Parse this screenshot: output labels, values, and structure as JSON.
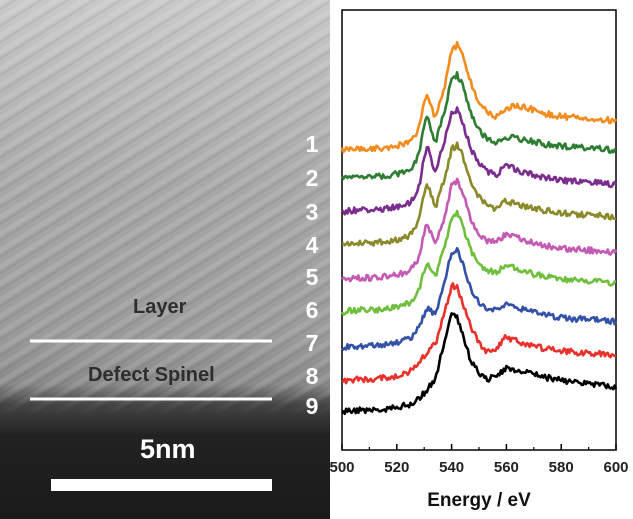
{
  "figure": {
    "micrograph": {
      "layer_label": "Layer",
      "defect_label": "Defect Spinel",
      "scale_bar_label": "5nm"
    },
    "spectrum_numbers": [
      "1",
      "2",
      "3",
      "4",
      "5",
      "6",
      "7",
      "8",
      "9"
    ]
  },
  "chart_data": {
    "type": "line",
    "title": "",
    "xlabel": "Energy / eV",
    "ylabel": "",
    "xlim": [
      500,
      600
    ],
    "x_ticks": [
      500,
      520,
      540,
      560,
      580,
      600
    ],
    "grid": false,
    "legend": "none",
    "x": [
      500,
      505,
      510,
      515,
      520,
      525,
      528,
      531,
      534,
      537,
      540,
      542,
      544,
      547,
      550,
      553,
      556,
      560,
      565,
      570,
      575,
      580,
      585,
      590,
      595,
      600
    ],
    "series": [
      {
        "color": "#f28c1e",
        "values": [
          0.0,
          0.01,
          0.01,
          0.02,
          0.04,
          0.08,
          0.2,
          0.55,
          0.3,
          0.55,
          0.95,
          1.0,
          0.92,
          0.65,
          0.45,
          0.35,
          0.32,
          0.4,
          0.42,
          0.38,
          0.34,
          0.32,
          0.31,
          0.3,
          0.29,
          0.28
        ]
      },
      {
        "color": "#2e7d32",
        "values": [
          0.0,
          0.01,
          0.01,
          0.02,
          0.04,
          0.08,
          0.22,
          0.62,
          0.34,
          0.6,
          0.97,
          1.0,
          0.9,
          0.64,
          0.46,
          0.38,
          0.34,
          0.4,
          0.38,
          0.35,
          0.32,
          0.31,
          0.3,
          0.29,
          0.28,
          0.27
        ]
      },
      {
        "color": "#7b2d8e",
        "values": [
          0.0,
          0.02,
          0.02,
          0.03,
          0.05,
          0.1,
          0.24,
          0.66,
          0.38,
          0.65,
          0.98,
          1.0,
          0.88,
          0.62,
          0.47,
          0.4,
          0.36,
          0.46,
          0.4,
          0.36,
          0.33,
          0.31,
          0.3,
          0.29,
          0.28,
          0.27
        ]
      },
      {
        "color": "#8a8a2a",
        "values": [
          0.0,
          0.02,
          0.02,
          0.03,
          0.05,
          0.1,
          0.24,
          0.63,
          0.37,
          0.62,
          0.96,
          1.0,
          0.9,
          0.64,
          0.48,
          0.4,
          0.36,
          0.44,
          0.4,
          0.36,
          0.34,
          0.32,
          0.31,
          0.3,
          0.29,
          0.28
        ]
      },
      {
        "color": "#c45ab3",
        "values": [
          0.0,
          0.02,
          0.02,
          0.03,
          0.05,
          0.1,
          0.22,
          0.58,
          0.36,
          0.6,
          0.95,
          1.0,
          0.9,
          0.62,
          0.46,
          0.4,
          0.38,
          0.46,
          0.42,
          0.37,
          0.34,
          0.32,
          0.31,
          0.3,
          0.29,
          0.28
        ]
      },
      {
        "color": "#6fbe3c",
        "values": [
          0.0,
          0.02,
          0.02,
          0.03,
          0.05,
          0.1,
          0.22,
          0.5,
          0.36,
          0.6,
          0.96,
          1.0,
          0.88,
          0.62,
          0.47,
          0.42,
          0.4,
          0.48,
          0.43,
          0.38,
          0.35,
          0.33,
          0.32,
          0.31,
          0.3,
          0.29
        ]
      },
      {
        "color": "#3451a8",
        "values": [
          0.0,
          0.02,
          0.02,
          0.03,
          0.05,
          0.1,
          0.2,
          0.4,
          0.34,
          0.62,
          0.98,
          1.0,
          0.86,
          0.6,
          0.46,
          0.4,
          0.38,
          0.44,
          0.4,
          0.36,
          0.33,
          0.31,
          0.3,
          0.29,
          0.28,
          0.27
        ]
      },
      {
        "color": "#e8312a",
        "values": [
          0.0,
          0.02,
          0.02,
          0.03,
          0.05,
          0.1,
          0.18,
          0.3,
          0.38,
          0.66,
          1.0,
          0.98,
          0.82,
          0.56,
          0.4,
          0.3,
          0.34,
          0.46,
          0.4,
          0.36,
          0.33,
          0.31,
          0.3,
          0.29,
          0.28,
          0.27
        ]
      },
      {
        "color": "#000000",
        "values": [
          0.0,
          0.02,
          0.02,
          0.03,
          0.05,
          0.08,
          0.14,
          0.22,
          0.34,
          0.66,
          1.0,
          0.97,
          0.8,
          0.52,
          0.4,
          0.32,
          0.38,
          0.44,
          0.42,
          0.38,
          0.35,
          0.32,
          0.3,
          0.28,
          0.27,
          0.26
        ]
      }
    ]
  }
}
